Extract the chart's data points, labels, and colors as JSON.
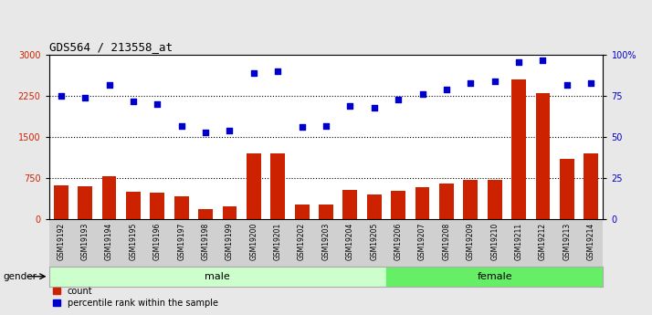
{
  "title": "GDS564 / 213558_at",
  "samples": [
    "GSM19192",
    "GSM19193",
    "GSM19194",
    "GSM19195",
    "GSM19196",
    "GSM19197",
    "GSM19198",
    "GSM19199",
    "GSM19200",
    "GSM19201",
    "GSM19202",
    "GSM19203",
    "GSM19204",
    "GSM19205",
    "GSM19206",
    "GSM19207",
    "GSM19208",
    "GSM19209",
    "GSM19210",
    "GSM19211",
    "GSM19212",
    "GSM19213",
    "GSM19214"
  ],
  "counts": [
    620,
    600,
    780,
    500,
    480,
    420,
    180,
    230,
    1200,
    1200,
    260,
    270,
    530,
    440,
    520,
    580,
    650,
    710,
    710,
    2550,
    2300,
    1100,
    1200
  ],
  "percentile": [
    75,
    74,
    82,
    72,
    70,
    57,
    53,
    54,
    89,
    90,
    56,
    57,
    69,
    68,
    73,
    76,
    79,
    83,
    84,
    96,
    97,
    82,
    83
  ],
  "gender": [
    "male",
    "male",
    "male",
    "male",
    "male",
    "male",
    "male",
    "male",
    "male",
    "male",
    "male",
    "male",
    "male",
    "male",
    "female",
    "female",
    "female",
    "female",
    "female",
    "female",
    "female",
    "female",
    "female"
  ],
  "bar_color": "#cc2200",
  "dot_color": "#0000cc",
  "male_color": "#ccffcc",
  "female_color": "#66ee66",
  "left_axis_color": "#cc2200",
  "right_axis_color": "#0000cc",
  "ylim_left": [
    0,
    3000
  ],
  "ylim_right": [
    0,
    100
  ],
  "yticks_left": [
    0,
    750,
    1500,
    2250,
    3000
  ],
  "ytick_labels_left": [
    "0",
    "750",
    "1500",
    "2250",
    "3000"
  ],
  "yticks_right": [
    0,
    25,
    50,
    75,
    100
  ],
  "ytick_labels_right": [
    "0",
    "25",
    "50",
    "75",
    "100%"
  ],
  "legend_count_label": "count",
  "legend_pct_label": "percentile rank within the sample",
  "gender_label": "gender",
  "background_color": "#e8e8e8",
  "plot_bg_color": "#ffffff",
  "label_bg_color": "#d0d0d0"
}
